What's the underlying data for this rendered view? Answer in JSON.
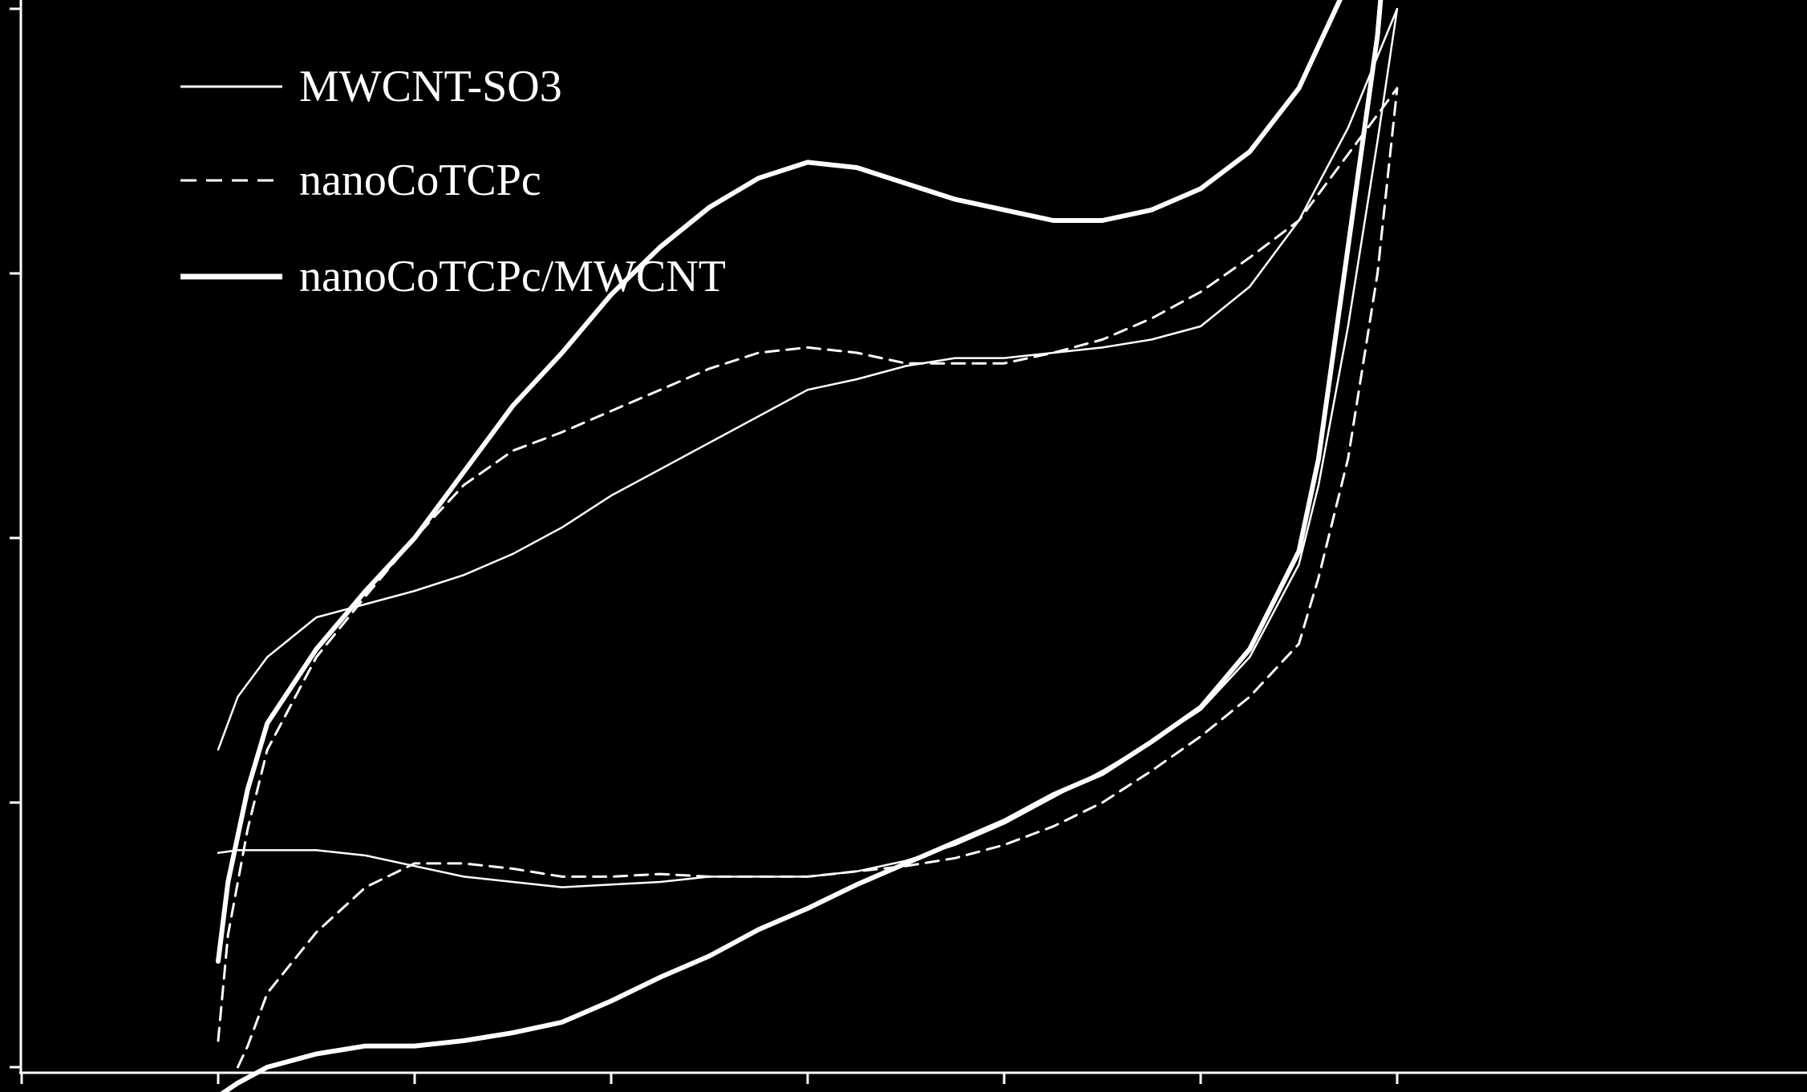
{
  "colors": {
    "background": "#000000",
    "foreground": "#ffffff"
  },
  "chart_data": {
    "type": "line",
    "title": "",
    "xlabel": "",
    "ylabel": "",
    "xlim": [
      -0.1,
      1.3
    ],
    "ylim": [
      -2.0,
      2.0
    ],
    "x_ticks": [
      -0.1,
      0.1,
      0.3,
      0.5,
      0.7,
      0.9,
      1.1,
      1.3
    ],
    "y_ticks": [
      -2.0,
      -1.0,
      0.0,
      1.0,
      2.0
    ],
    "tick_labels_shown": false,
    "grid": false,
    "legend_position": "top-left",
    "series": [
      {
        "name": "MWCNT-SO3",
        "style": "thin-solid",
        "x": [
          0.1,
          0.12,
          0.15,
          0.2,
          0.25,
          0.3,
          0.35,
          0.4,
          0.45,
          0.5,
          0.55,
          0.6,
          0.65,
          0.7,
          0.75,
          0.8,
          0.85,
          0.9,
          0.95,
          1.0,
          1.05,
          1.1,
          1.15,
          1.2,
          1.25,
          1.3,
          1.28,
          1.25,
          1.22,
          1.2,
          1.15,
          1.1,
          1.05,
          1.0,
          0.95,
          0.9,
          0.85,
          0.8,
          0.75,
          0.7,
          0.65,
          0.6,
          0.55,
          0.5,
          0.45,
          0.4,
          0.35,
          0.3,
          0.25,
          0.2,
          0.15,
          0.12,
          0.1
        ],
        "y": [
          -0.8,
          -0.6,
          -0.45,
          -0.3,
          -0.25,
          -0.2,
          -0.14,
          -0.06,
          0.04,
          0.16,
          0.26,
          0.36,
          0.46,
          0.56,
          0.6,
          0.65,
          0.68,
          0.68,
          0.7,
          0.72,
          0.75,
          0.8,
          0.95,
          1.2,
          1.55,
          2.0,
          1.5,
          0.8,
          0.2,
          -0.1,
          -0.45,
          -0.65,
          -0.77,
          -0.88,
          -0.98,
          -1.08,
          -1.16,
          -1.22,
          -1.26,
          -1.28,
          -1.28,
          -1.28,
          -1.3,
          -1.31,
          -1.32,
          -1.3,
          -1.28,
          -1.24,
          -1.2,
          -1.18,
          -1.18,
          -1.18,
          -1.19
        ]
      },
      {
        "name": "nanoCoTCPc",
        "style": "dashed",
        "x": [
          0.1,
          0.11,
          0.13,
          0.15,
          0.2,
          0.25,
          0.3,
          0.35,
          0.4,
          0.45,
          0.5,
          0.55,
          0.6,
          0.65,
          0.7,
          0.75,
          0.8,
          0.85,
          0.9,
          0.95,
          1.0,
          1.05,
          1.1,
          1.15,
          1.2,
          1.25,
          1.3,
          1.28,
          1.25,
          1.22,
          1.2,
          1.15,
          1.1,
          1.05,
          1.0,
          0.95,
          0.9,
          0.85,
          0.8,
          0.75,
          0.7,
          0.65,
          0.6,
          0.55,
          0.5,
          0.45,
          0.4,
          0.35,
          0.3,
          0.25,
          0.2,
          0.15,
          0.13,
          0.12
        ],
        "y": [
          -1.9,
          -1.5,
          -1.1,
          -0.8,
          -0.45,
          -0.22,
          0.0,
          0.2,
          0.33,
          0.4,
          0.48,
          0.56,
          0.64,
          0.7,
          0.72,
          0.7,
          0.66,
          0.66,
          0.66,
          0.7,
          0.75,
          0.83,
          0.93,
          1.06,
          1.2,
          1.45,
          1.7,
          1.0,
          0.3,
          -0.15,
          -0.4,
          -0.6,
          -0.75,
          -0.88,
          -1.0,
          -1.09,
          -1.16,
          -1.21,
          -1.24,
          -1.26,
          -1.28,
          -1.28,
          -1.28,
          -1.27,
          -1.28,
          -1.28,
          -1.25,
          -1.23,
          -1.23,
          -1.32,
          -1.49,
          -1.72,
          -1.92,
          -2.0
        ]
      },
      {
        "name": "nanoCoTCPc/MWCNT",
        "style": "thick-solid",
        "x": [
          0.1,
          0.11,
          0.13,
          0.15,
          0.2,
          0.25,
          0.3,
          0.35,
          0.4,
          0.45,
          0.5,
          0.55,
          0.6,
          0.65,
          0.7,
          0.75,
          0.8,
          0.85,
          0.9,
          0.95,
          1.0,
          1.05,
          1.1,
          1.15,
          1.2,
          1.25,
          1.3,
          1.28,
          1.25,
          1.22,
          1.2,
          1.15,
          1.1,
          1.05,
          1.0,
          0.95,
          0.9,
          0.85,
          0.8,
          0.75,
          0.7,
          0.65,
          0.6,
          0.55,
          0.5,
          0.45,
          0.4,
          0.35,
          0.3,
          0.25,
          0.2,
          0.15,
          0.12,
          0.1
        ],
        "y": [
          -1.6,
          -1.3,
          -0.95,
          -0.7,
          -0.42,
          -0.2,
          0.0,
          0.25,
          0.5,
          0.7,
          0.92,
          1.1,
          1.25,
          1.36,
          1.42,
          1.4,
          1.34,
          1.28,
          1.24,
          1.2,
          1.2,
          1.24,
          1.32,
          1.46,
          1.7,
          2.1,
          2.75,
          1.9,
          1.1,
          0.3,
          -0.05,
          -0.42,
          -0.64,
          -0.77,
          -0.89,
          -0.97,
          -1.07,
          -1.15,
          -1.23,
          -1.31,
          -1.4,
          -1.48,
          -1.58,
          -1.66,
          -1.75,
          -1.83,
          -1.87,
          -1.9,
          -1.92,
          -1.92,
          -1.95,
          -2.0,
          -2.06,
          -2.11
        ]
      }
    ]
  }
}
